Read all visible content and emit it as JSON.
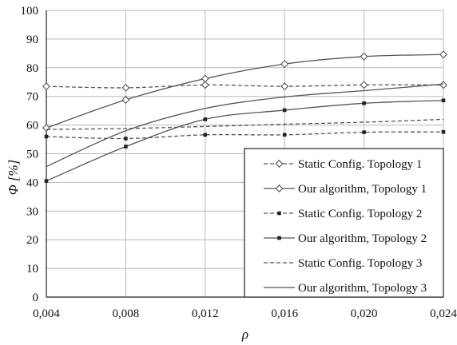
{
  "chart_data": {
    "type": "line",
    "xlabel": "ρ",
    "ylabel": "Φ [%]",
    "x": [
      0.004,
      0.008,
      0.012,
      0.016,
      0.02,
      0.024
    ],
    "x_tick_labels": [
      "0,004",
      "0,008",
      "0,012",
      "0,016",
      "0,020",
      "0,024"
    ],
    "y_ticks": [
      0,
      10,
      20,
      30,
      40,
      50,
      60,
      70,
      80,
      90,
      100
    ],
    "xlim": [
      0.004,
      0.024
    ],
    "ylim": [
      0,
      100
    ],
    "grid": true,
    "legend_position": "bottom-right",
    "series": [
      {
        "name": "Static Config. Topology 1",
        "values": [
          73.5,
          73.0,
          74.0,
          73.5,
          74.0,
          74.0
        ],
        "dash": "dashed",
        "marker": "diamond"
      },
      {
        "name": "Our algorithm, Topology 1",
        "values": [
          59.0,
          68.8,
          76.2,
          81.3,
          83.9,
          84.6
        ],
        "dash": "solid",
        "marker": "diamond"
      },
      {
        "name": "Static Config. Topology 2",
        "values": [
          56.0,
          55.3,
          56.6,
          56.6,
          57.5,
          57.6
        ],
        "dash": "dashed",
        "marker": "square"
      },
      {
        "name": "Our algorithm, Topology 2",
        "values": [
          40.5,
          52.5,
          62.0,
          65.2,
          67.6,
          68.6
        ],
        "dash": "solid",
        "marker": "square"
      },
      {
        "name": "Static Config. Topology 3",
        "values": [
          58.5,
          58.8,
          59.5,
          60.3,
          61.0,
          62.0
        ],
        "dash": "dashed",
        "marker": "none"
      },
      {
        "name": "Our algorithm, Topology 3",
        "values": [
          45.5,
          58.0,
          65.8,
          69.8,
          72.0,
          74.3
        ],
        "dash": "solid",
        "marker": "none"
      }
    ]
  }
}
